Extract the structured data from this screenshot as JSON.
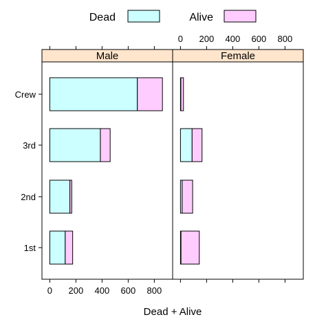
{
  "chart_data": {
    "type": "bar",
    "orientation": "horizontal",
    "stacked": true,
    "categories": [
      "Crew",
      "3rd",
      "2nd",
      "1st"
    ],
    "panels": [
      {
        "name": "Male",
        "series": [
          {
            "name": "Dead",
            "values": [
              670,
              387,
              154,
              118
            ]
          },
          {
            "name": "Alive",
            "values": [
              192,
              75,
              14,
              57
            ]
          }
        ]
      },
      {
        "name": "Female",
        "series": [
          {
            "name": "Dead",
            "values": [
              3,
              89,
              13,
              4
            ]
          },
          {
            "name": "Alive",
            "values": [
              20,
              76,
              80,
              140
            ]
          }
        ]
      }
    ],
    "xlabel": "Dead + Alive",
    "xlim": [
      -60,
      940
    ],
    "xticks": [
      "0",
      "200",
      "400",
      "600",
      "800"
    ],
    "xtick_values": [
      0,
      200,
      400,
      600,
      800
    ],
    "colors": {
      "Dead": "#ccffff",
      "Alive": "#ffccff",
      "strip": "#ffe5cc"
    },
    "legend": {
      "position": "top",
      "items": [
        "Dead",
        "Alive"
      ]
    },
    "grid": false
  }
}
